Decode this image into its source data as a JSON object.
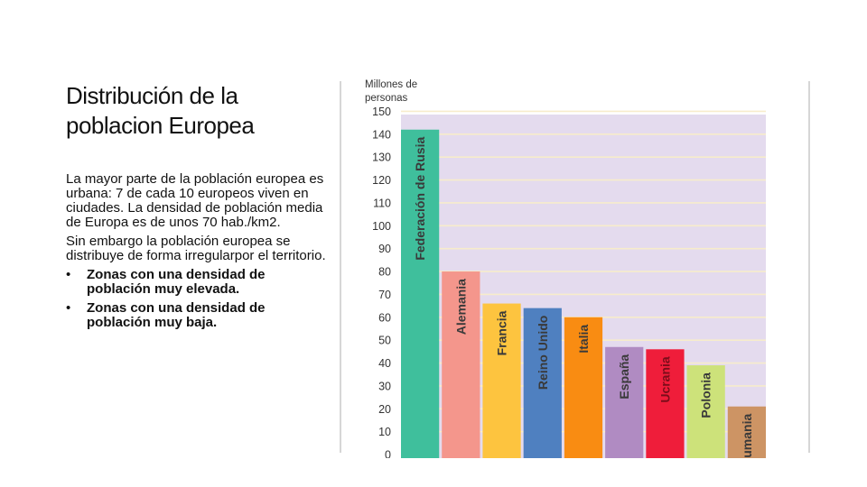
{
  "slide": {
    "title": "Distribución de la poblacion Europea",
    "paragraphs": [
      "La mayor parte de la población europea es urbana: 7 de cada 10 europeos viven en ciudades. La densidad de población media de Europa es de unos 70 hab./km2.",
      "Sin embargo la población europea se distribuye de forma irregularpor el territorio."
    ],
    "bullets": [
      "Zonas con una densidad de población muy elevada.",
      "Zonas con una densidad de población muy baja."
    ],
    "bullet_symbol": "•"
  },
  "chart_data": {
    "type": "bar",
    "ylabel_lines": [
      "Millones de",
      "personas"
    ],
    "ylim": [
      0,
      150
    ],
    "yticks": [
      10,
      20,
      30,
      40,
      50,
      60,
      70,
      80,
      90,
      100,
      110,
      120,
      130,
      140,
      150
    ],
    "grid": true,
    "plot_background": "#e4dbee",
    "grid_color": "#f7eccb",
    "categories": [
      "Federación de Rusia",
      "Alemania",
      "Francia",
      "Reino Unido",
      "Italia",
      "España",
      "Ucrania",
      "Polonia",
      "Rumania"
    ],
    "values": [
      142,
      80,
      66,
      64,
      60,
      47,
      46,
      39,
      21
    ],
    "colors": [
      "#3fbf9c",
      "#f4968c",
      "#fdc43f",
      "#4f80c0",
      "#f98c12",
      "#b08bc2",
      "#ef1d3a",
      "#cde27a",
      "#cd9464"
    ]
  }
}
